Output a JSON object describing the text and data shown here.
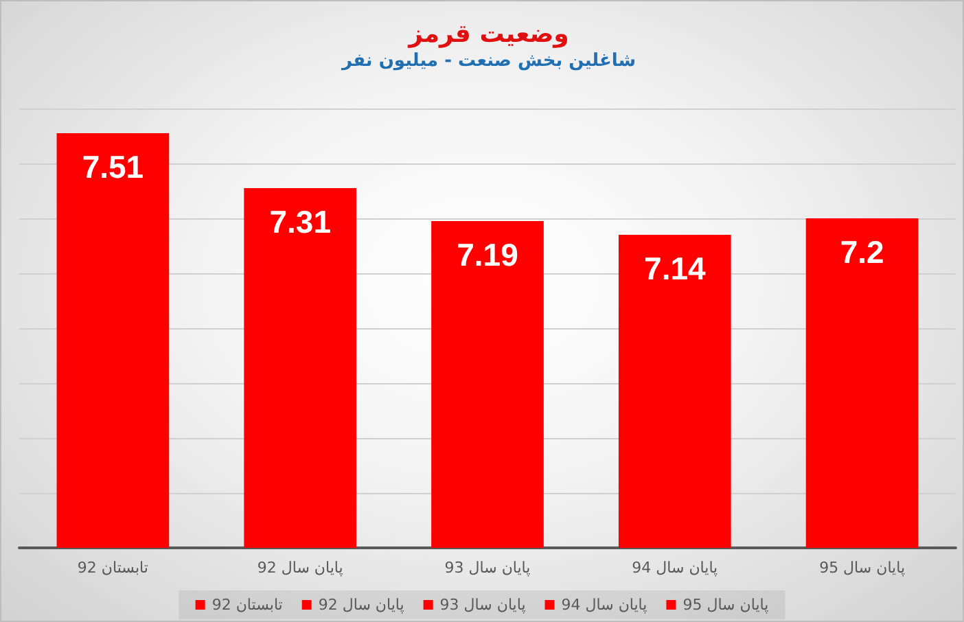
{
  "chart_data": {
    "type": "bar",
    "title": "وضعیت قرمز",
    "subtitle": "شاغلین بخش صنعت - میلیون نفر",
    "categories": [
      "تابستان 92",
      "پایان سال 92",
      "پایان سال 93",
      "پایان سال 94",
      "پایان سال 95"
    ],
    "series": [
      {
        "name": "تابستان 92",
        "color": "#ff0000",
        "values": [
          7.51,
          null,
          null,
          null,
          null
        ]
      },
      {
        "name": "پایان سال 92",
        "color": "#ff0000",
        "values": [
          null,
          7.31,
          null,
          null,
          null
        ]
      },
      {
        "name": "پایان سال 93",
        "color": "#ff0000",
        "values": [
          null,
          null,
          7.19,
          null,
          null
        ]
      },
      {
        "name": "پایان سال 94",
        "color": "#ff0000",
        "values": [
          null,
          null,
          null,
          7.14,
          null
        ]
      },
      {
        "name": "پایان سال 95",
        "color": "#ff0000",
        "values": [
          null,
          null,
          null,
          null,
          7.2
        ]
      }
    ],
    "stacked": true,
    "ylim": [
      6,
      7.6
    ],
    "yticks": [
      {
        "value": 6,
        "label": null
      },
      {
        "value": 6.2,
        "label": null
      },
      {
        "value": 6.4,
        "label": null
      },
      {
        "value": 6.6,
        "label": null
      },
      {
        "value": 6.8,
        "label": null
      },
      {
        "value": 7,
        "label": null
      },
      {
        "value": 7.2,
        "label": null
      },
      {
        "value": 7.4,
        "label": null
      },
      {
        "value": 7.6,
        "label": null
      }
    ],
    "tick_labels": "x",
    "grid": "y",
    "legend": "bottom",
    "data_labels": true
  }
}
